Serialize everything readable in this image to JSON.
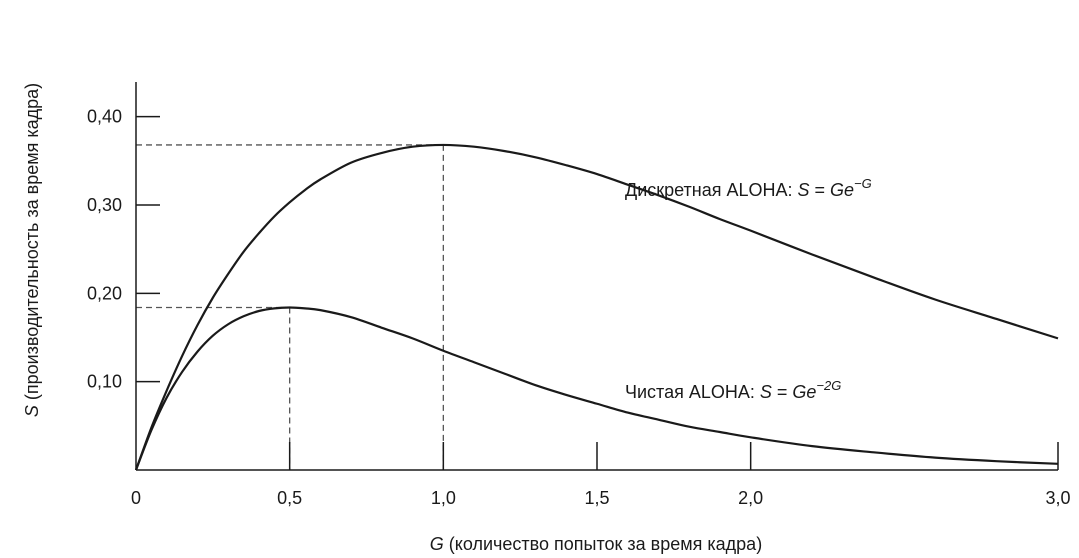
{
  "chart_data": {
    "type": "line",
    "xlabel": {
      "var": "G",
      "text": " (количество попыток за время кадра)"
    },
    "ylabel": {
      "var": "S",
      "text": " (производительность за время кадра)"
    },
    "xlim": [
      0,
      3.0
    ],
    "ylim": [
      0,
      0.48
    ],
    "x_ticks": [
      0,
      0.5,
      1.0,
      1.5,
      2.0,
      3.0
    ],
    "x_tick_labels": [
      "0",
      "0,5",
      "1,0",
      "1,5",
      "2,0",
      "3,0"
    ],
    "y_ticks": [
      0.1,
      0.2,
      0.3,
      0.4
    ],
    "y_tick_labels": [
      "0,10",
      "0,20",
      "0,30",
      "0,40"
    ],
    "x": [
      0,
      0.05,
      0.1,
      0.15,
      0.2,
      0.25,
      0.3,
      0.35,
      0.4,
      0.45,
      0.5,
      0.55,
      0.6,
      0.7,
      0.8,
      0.9,
      1.0,
      1.1,
      1.2,
      1.3,
      1.4,
      1.5,
      1.6,
      1.7,
      1.8,
      1.9,
      2.0,
      2.2,
      2.4,
      2.6,
      2.8,
      3.0
    ],
    "series": [
      {
        "label_prefix": "Дискретная ALOHA: ",
        "formula_var": "S",
        "formula_eq": " = ",
        "formula_base": "Ge",
        "formula_exp": "−G",
        "peak": [
          1.0,
          0.368
        ],
        "values": [
          0,
          0.048,
          0.09,
          0.129,
          0.164,
          0.195,
          0.222,
          0.247,
          0.268,
          0.287,
          0.303,
          0.317,
          0.329,
          0.348,
          0.359,
          0.366,
          0.368,
          0.366,
          0.361,
          0.354,
          0.345,
          0.335,
          0.323,
          0.311,
          0.298,
          0.284,
          0.271,
          0.244,
          0.218,
          0.193,
          0.171,
          0.149
        ]
      },
      {
        "label_prefix": "Чистая  ALOHA: ",
        "formula_var": "S",
        "formula_eq": " = ",
        "formula_base": "Ge",
        "formula_exp": "−2G",
        "peak": [
          0.5,
          0.184
        ],
        "values": [
          0,
          0.045,
          0.082,
          0.111,
          0.134,
          0.152,
          0.165,
          0.174,
          0.18,
          0.183,
          0.184,
          0.183,
          0.181,
          0.173,
          0.161,
          0.149,
          0.135,
          0.122,
          0.109,
          0.096,
          0.085,
          0.075,
          0.065,
          0.057,
          0.049,
          0.043,
          0.037,
          0.027,
          0.02,
          0.014,
          0.01,
          0.007
        ]
      }
    ]
  }
}
